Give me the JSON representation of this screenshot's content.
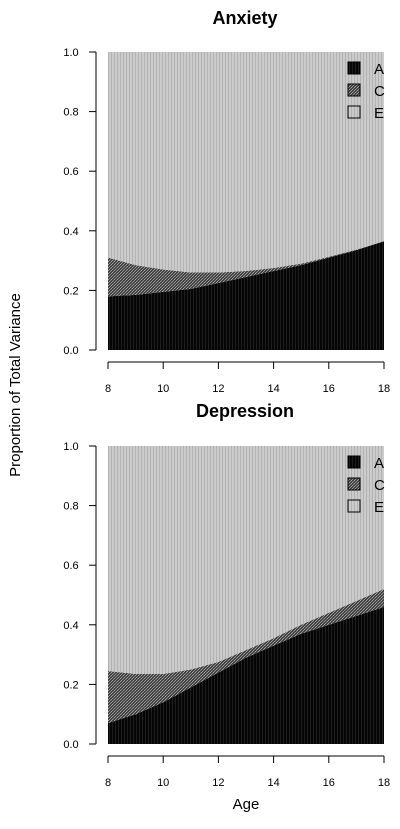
{
  "figure": {
    "ylabel": "Proportion of Total Variance",
    "xlabel": "Age"
  },
  "chart_data": [
    {
      "type": "area",
      "title": "Anxiety",
      "stacked": true,
      "x": [
        8,
        9,
        10,
        11,
        12,
        13,
        14,
        15,
        16,
        17,
        18
      ],
      "series": [
        {
          "name": "A",
          "color": "#000000",
          "pattern": "solid-dark",
          "values": [
            0.18,
            0.185,
            0.195,
            0.205,
            0.225,
            0.245,
            0.265,
            0.285,
            0.31,
            0.335,
            0.365
          ]
        },
        {
          "name": "C",
          "color": "#555555",
          "pattern": "stipple",
          "values": [
            0.13,
            0.1,
            0.075,
            0.055,
            0.035,
            0.02,
            0.01,
            0.005,
            0.003,
            0.002,
            0.0
          ]
        },
        {
          "name": "E",
          "color": "#c8c8c8",
          "pattern": "vertical-lines",
          "values": [
            0.69,
            0.715,
            0.73,
            0.74,
            0.74,
            0.735,
            0.725,
            0.71,
            0.687,
            0.663,
            0.635
          ]
        }
      ],
      "xticks": [
        "8",
        "10",
        "12",
        "14",
        "16",
        "18"
      ],
      "yticks": [
        "0.0",
        "0.2",
        "0.4",
        "0.6",
        "0.8",
        "1.0"
      ],
      "xlim": [
        8,
        18
      ],
      "ylim": [
        0,
        1
      ],
      "legend": "top-right",
      "grid": false
    },
    {
      "type": "area",
      "title": "Depression",
      "stacked": true,
      "x": [
        8,
        9,
        10,
        11,
        12,
        13,
        14,
        15,
        16,
        17,
        18
      ],
      "series": [
        {
          "name": "A",
          "color": "#000000",
          "pattern": "solid-dark",
          "values": [
            0.07,
            0.1,
            0.14,
            0.19,
            0.24,
            0.29,
            0.33,
            0.37,
            0.4,
            0.43,
            0.46
          ]
        },
        {
          "name": "C",
          "color": "#555555",
          "pattern": "stipple",
          "values": [
            0.175,
            0.135,
            0.095,
            0.06,
            0.035,
            0.025,
            0.025,
            0.03,
            0.04,
            0.05,
            0.06
          ]
        },
        {
          "name": "E",
          "color": "#c8c8c8",
          "pattern": "vertical-lines",
          "values": [
            0.755,
            0.765,
            0.765,
            0.75,
            0.725,
            0.685,
            0.645,
            0.6,
            0.56,
            0.52,
            0.48
          ]
        }
      ],
      "xticks": [
        "8",
        "10",
        "12",
        "14",
        "16",
        "18"
      ],
      "yticks": [
        "0.0",
        "0.2",
        "0.4",
        "0.6",
        "0.8",
        "1.0"
      ],
      "xlim": [
        8,
        18
      ],
      "ylim": [
        0,
        1
      ],
      "legend": "top-right",
      "grid": false
    }
  ]
}
